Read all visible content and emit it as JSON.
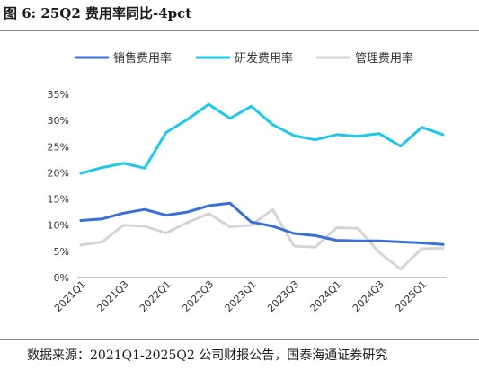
{
  "title": "图 6:  25Q2 费用率同比-4pct",
  "source": "数据来源：2021Q1-2025Q2 公司财报公告，国泰海通证券研究",
  "chart_data": {
    "type": "line",
    "title": "图 6:  25Q2 费用率同比-4pct",
    "xlabel": "",
    "ylabel": "",
    "x": [
      "2021Q1",
      "2021Q2",
      "2021Q3",
      "2021Q4",
      "2022Q1",
      "2022Q2",
      "2022Q3",
      "2022Q4",
      "2023Q1",
      "2023Q2",
      "2023Q3",
      "2023Q4",
      "2024Q1",
      "2024Q2",
      "2024Q3",
      "2024Q4",
      "2025Q1",
      "2025Q2"
    ],
    "x_tick_labels": [
      "2021Q1",
      "2021Q3",
      "2022Q1",
      "2022Q3",
      "2023Q1",
      "2023Q3",
      "2024Q1",
      "2024Q3",
      "2025Q1"
    ],
    "y_ticks": [
      "0%",
      "5%",
      "10%",
      "15%",
      "20%",
      "25%",
      "30%",
      "35%"
    ],
    "ylim": [
      0,
      35
    ],
    "legend": "top",
    "grid": false,
    "series": [
      {
        "name": "销售费用率",
        "color": "#3a6fd8",
        "values": [
          10.9,
          11.2,
          12.3,
          13.0,
          11.9,
          12.5,
          13.7,
          14.2,
          10.6,
          9.8,
          8.4,
          8.0,
          7.1,
          7.0,
          7.0,
          6.8,
          6.6,
          6.3
        ]
      },
      {
        "name": "研发费用率",
        "color": "#1ec8ec",
        "values": [
          19.9,
          21.0,
          21.8,
          20.9,
          27.7,
          30.2,
          33.1,
          30.4,
          32.7,
          29.2,
          27.1,
          26.3,
          27.3,
          27.0,
          27.5,
          25.1,
          28.7,
          27.3
        ]
      },
      {
        "name": "管理费用率",
        "color": "#d4d4d4",
        "values": [
          6.2,
          6.8,
          10.0,
          9.8,
          8.5,
          10.5,
          12.2,
          9.7,
          10.0,
          13.0,
          6.0,
          5.8,
          9.5,
          9.4,
          4.8,
          1.6,
          5.5,
          5.6
        ]
      }
    ]
  }
}
